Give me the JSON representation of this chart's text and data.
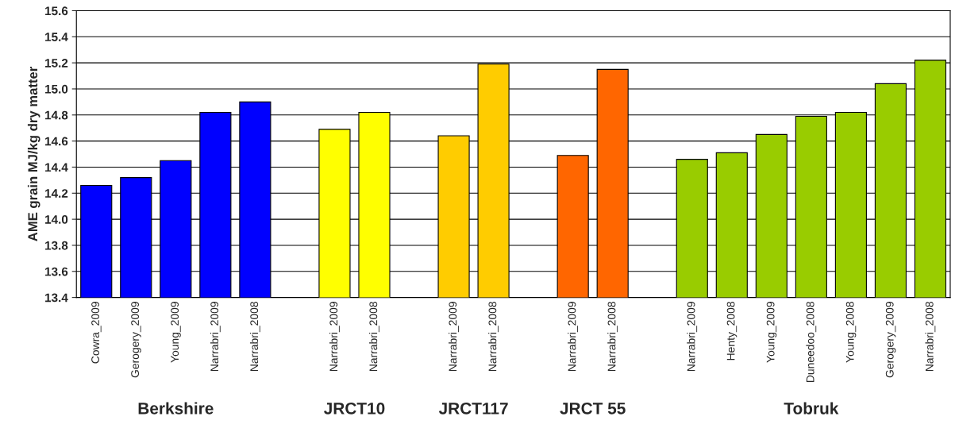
{
  "chart_data": {
    "type": "bar",
    "ylabel": "AME grain MJ/kg dry matter",
    "categories": [
      "Cowra_2009",
      "Gerogery_2009",
      "Young_2009",
      "Narrabri_2009",
      "Narrabri_2008",
      null,
      "Narrabri_2009",
      "Narrabri_2008",
      null,
      "Narrabri_2009",
      "Narrabri_2008",
      null,
      "Narrabri_2009",
      "Narrabri_2008",
      null,
      "Narrabri_2009",
      "Henty_2008",
      "Young_2009",
      "Duneedoo_2008",
      "Young_2008",
      "Gerogery_2009",
      "Narrabri_2008"
    ],
    "values": [
      14.26,
      14.32,
      14.45,
      14.82,
      14.9,
      null,
      14.69,
      14.82,
      null,
      14.64,
      15.19,
      null,
      14.49,
      15.15,
      null,
      14.46,
      14.51,
      14.65,
      14.79,
      14.82,
      15.04,
      15.22
    ],
    "colors": [
      "#0000ff",
      "#0000ff",
      "#0000ff",
      "#0000ff",
      "#0000ff",
      null,
      "#ffff00",
      "#ffff00",
      null,
      "#ffcc00",
      "#ffcc00",
      null,
      "#ff6600",
      "#ff6600",
      null,
      "#99cc00",
      "#99cc00",
      "#99cc00",
      "#99cc00",
      "#99cc00",
      "#99cc00",
      "#99cc00"
    ],
    "ylim": [
      13.4,
      15.6
    ],
    "yticks": [
      13.4,
      13.6,
      13.8,
      {
        "value": 14,
        "label": "14.0"
      },
      14.2,
      14.4,
      14.6,
      14.8,
      {
        "value": 15,
        "label": "15.0"
      },
      15.2,
      15.4,
      15.6
    ],
    "grid": "y",
    "annotations": [
      "Berkshire",
      "JRCT10",
      "JRCT117",
      "JRCT 55",
      "Tobruk"
    ]
  }
}
